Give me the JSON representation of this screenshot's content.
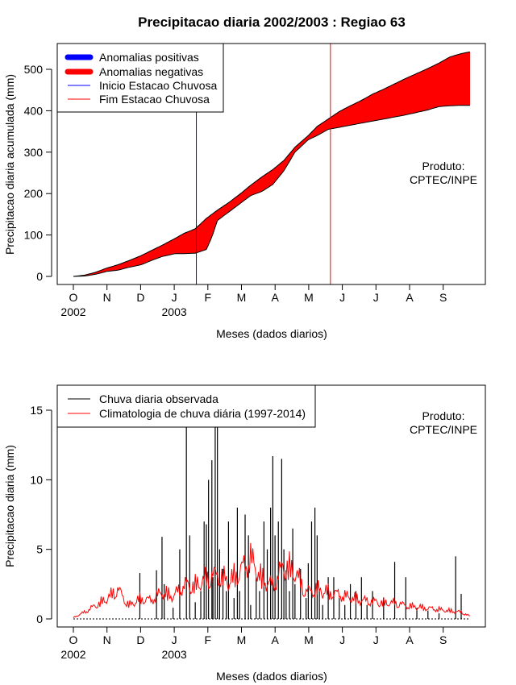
{
  "chart_data": [
    {
      "type": "area",
      "title": "Precipitacao diaria 2002/2003 : Regiao 63",
      "xlabel": "Meses (dados diarios)",
      "ylabel": "Precipitacao diaria acumulada (mm)",
      "ylim": [
        0,
        550
      ],
      "yticks": [
        0,
        100,
        200,
        300,
        400,
        500
      ],
      "month_labels": [
        "O",
        "N",
        "D",
        "J",
        "F",
        "M",
        "A",
        "M",
        "J",
        "J",
        "A",
        "S"
      ],
      "year_labels": [
        {
          "label": "2002",
          "month_index": 0
        },
        {
          "label": "2003",
          "month_index": 3
        }
      ],
      "legend": [
        "Anomalias positivas",
        "Anomalias negativas",
        "Inicio Estacao Chuvosa",
        "Fim Estacao Chuvosa"
      ],
      "legend_colors": [
        "#0000ff",
        "#ff0000",
        "#0000ff",
        "#ff0000"
      ],
      "annotation": [
        "Produto:",
        "CPTEC/INPE"
      ],
      "season_start_day": 111,
      "season_end_day": 232,
      "climatology_cumulative": {
        "days": [
          0,
          10,
          20,
          30,
          40,
          50,
          61,
          70,
          80,
          92,
          100,
          110,
          120,
          130,
          140,
          150,
          160,
          170,
          180,
          190,
          200,
          212,
          220,
          230,
          240,
          250,
          260,
          270,
          280,
          290,
          300,
          310,
          320,
          330,
          340,
          350,
          358
        ],
        "values": [
          0,
          3,
          10,
          20,
          28,
          38,
          50,
          62,
          75,
          92,
          104,
          115,
          140,
          160,
          178,
          198,
          220,
          240,
          258,
          280,
          312,
          340,
          362,
          380,
          398,
          412,
          425,
          440,
          452,
          465,
          478,
          490,
          502,
          515,
          530,
          538,
          542
        ]
      },
      "observed_cumulative": {
        "days": [
          0,
          10,
          20,
          30,
          40,
          50,
          61,
          70,
          80,
          92,
          100,
          110,
          120,
          125,
          130,
          140,
          150,
          160,
          170,
          180,
          190,
          200,
          212,
          220,
          230,
          240,
          250,
          260,
          270,
          280,
          290,
          300,
          310,
          320,
          330,
          340,
          350,
          358
        ],
        "values": [
          0,
          1,
          5,
          12,
          15,
          22,
          28,
          38,
          48,
          55,
          55,
          56,
          65,
          95,
          135,
          155,
          175,
          195,
          205,
          222,
          255,
          300,
          330,
          340,
          355,
          360,
          365,
          370,
          375,
          380,
          385,
          390,
          396,
          402,
          410,
          412,
          413,
          413
        ]
      },
      "colors": {
        "fill": "#ff0000",
        "season_start": "#0000ff",
        "season_end": "#ff0000"
      }
    },
    {
      "type": "bar",
      "title": "",
      "xlabel": "Meses (dados diarios)",
      "ylabel": "Precipitacao diaria (mm)",
      "ylim": [
        0,
        16.5
      ],
      "yticks": [
        0,
        5,
        10,
        15
      ],
      "month_labels": [
        "O",
        "N",
        "D",
        "J",
        "F",
        "M",
        "A",
        "M",
        "J",
        "J",
        "A",
        "S"
      ],
      "year_labels": [
        {
          "label": "2002",
          "month_index": 0
        },
        {
          "label": "2003",
          "month_index": 3
        }
      ],
      "legend": [
        "Chuva diaria observada",
        "Climatologia de chuva diária (1997-2014)"
      ],
      "legend_colors": [
        "#000000",
        "#ff0000"
      ],
      "annotation": [
        "Produto:",
        "CPTEC/INPE"
      ],
      "series": [
        {
          "name": "Chuva diaria observada",
          "type": "bar",
          "color": "#000000",
          "x": [
            60,
            75,
            80,
            82,
            90,
            96,
            102,
            105,
            110,
            115,
            118,
            120,
            122,
            125,
            126,
            128,
            130,
            132,
            135,
            138,
            140,
            145,
            148,
            150,
            155,
            158,
            160,
            165,
            168,
            172,
            175,
            178,
            180,
            182,
            185,
            188,
            190,
            192,
            195,
            198,
            200,
            205,
            210,
            212,
            215,
            218,
            220,
            222,
            225,
            230,
            235,
            240,
            245,
            250,
            255,
            260,
            265,
            270,
            280,
            290,
            300,
            310,
            320,
            330,
            345,
            350
          ],
          "values": [
            3.3,
            3.5,
            5.9,
            2.5,
            0.8,
            5.0,
            14.0,
            6.0,
            1.2,
            2.0,
            7.0,
            6.8,
            10.0,
            11.4,
            3.0,
            14.5,
            16.0,
            5.0,
            3.6,
            2.0,
            7.0,
            1.5,
            8.0,
            2.0,
            7.5,
            6.0,
            1.0,
            3.0,
            2.0,
            7.0,
            5.0,
            8.0,
            11.7,
            6.0,
            7.0,
            11.5,
            5.0,
            3.5,
            2.0,
            6.5,
            2.5,
            3.6,
            1.5,
            4.0,
            7.0,
            8.0,
            6.0,
            2.0,
            1.0,
            3.0,
            3.0,
            1.5,
            1.0,
            2.5,
            2.0,
            3.0,
            1.0,
            2.0,
            1.5,
            4.1,
            3.0,
            0.8,
            0.6,
            0.4,
            4.5,
            1.8
          ]
        },
        {
          "name": "Climatologia de chuva diária (1997-2014)",
          "type": "line",
          "color": "#ff0000",
          "x": [
            0,
            10,
            20,
            30,
            40,
            50,
            60,
            70,
            80,
            90,
            100,
            110,
            120,
            130,
            140,
            150,
            160,
            170,
            180,
            190,
            200,
            210,
            220,
            230,
            240,
            250,
            260,
            270,
            280,
            290,
            300,
            310,
            320,
            330,
            340,
            350,
            358
          ],
          "values": [
            0.1,
            0.5,
            1.0,
            1.5,
            2.2,
            1.0,
            1.5,
            1.4,
            2.0,
            1.7,
            2.5,
            2.5,
            3.0,
            3.3,
            2.8,
            3.5,
            4.5,
            3.0,
            2.5,
            4.0,
            3.5,
            2.0,
            2.2,
            2.0,
            1.8,
            1.6,
            1.4,
            1.3,
            1.2,
            1.2,
            1.0,
            0.9,
            0.8,
            0.7,
            0.6,
            0.5,
            0.2
          ]
        }
      ]
    }
  ]
}
